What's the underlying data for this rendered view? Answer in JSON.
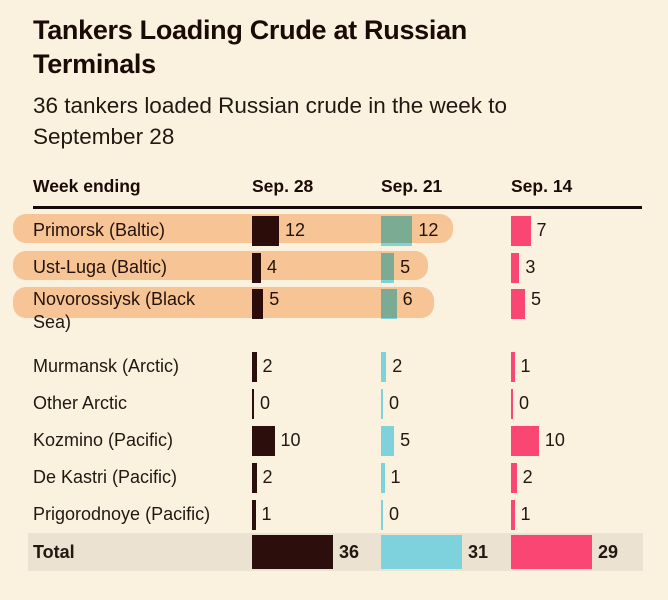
{
  "header": {
    "title": "Tankers Loading Crude at Russian Terminals",
    "subtitle": "36 tankers loaded Russian crude in the week to September 28"
  },
  "table": {
    "label_header": "Week ending",
    "columns": [
      "Sep. 28",
      "Sep. 21",
      "Sep. 14"
    ],
    "rows": [
      {
        "label": "Primorsk (Baltic)",
        "values": [
          12,
          12,
          7
        ],
        "highlighted": true
      },
      {
        "label": "Ust-Luga (Baltic)",
        "values": [
          4,
          5,
          3
        ],
        "highlighted": true
      },
      {
        "label": "Novorossiysk (Black Sea)",
        "values": [
          5,
          6,
          5
        ],
        "highlighted": true
      },
      {
        "label": "Murmansk (Arctic)",
        "values": [
          2,
          2,
          1
        ],
        "highlighted": false
      },
      {
        "label": "Other Arctic",
        "values": [
          0,
          0,
          0
        ],
        "highlighted": false
      },
      {
        "label": "Kozmino (Pacific)",
        "values": [
          10,
          5,
          10
        ],
        "highlighted": false
      },
      {
        "label": "De Kastri (Pacific)",
        "values": [
          2,
          1,
          2
        ],
        "highlighted": false
      },
      {
        "label": "Prigorodnoye (Pacific)",
        "values": [
          1,
          0,
          1
        ],
        "highlighted": false
      }
    ],
    "total": {
      "label": "Total",
      "values": [
        36,
        31,
        29
      ]
    }
  },
  "colors": {
    "background": "#fbf1df",
    "ink": "#1a0b06",
    "series": [
      "#2c0e0d",
      "#7ed2dc",
      "#f94672"
    ],
    "highlight_marker": "#fbd0ab",
    "total_row_background": "#ebe2d2"
  },
  "chart_data": {
    "type": "bar",
    "orientation": "horizontal",
    "title": "Tankers Loading Crude at Russian Terminals",
    "subtitle": "36 tankers loaded Russian crude in the week to September 28",
    "categories": [
      "Primorsk (Baltic)",
      "Ust-Luga (Baltic)",
      "Novorossiysk (Black Sea)",
      "Murmansk (Arctic)",
      "Other Arctic",
      "Kozmino (Pacific)",
      "De Kastri (Pacific)",
      "Prigorodnoye (Pacific)",
      "Total"
    ],
    "series": [
      {
        "name": "Sep. 28",
        "color": "#2c0e0d",
        "values": [
          12,
          4,
          5,
          2,
          0,
          10,
          2,
          1,
          36
        ]
      },
      {
        "name": "Sep. 21",
        "color": "#7ed2dc",
        "values": [
          12,
          5,
          6,
          2,
          0,
          5,
          1,
          0,
          31
        ]
      },
      {
        "name": "Sep. 14",
        "color": "#f94672",
        "values": [
          7,
          3,
          5,
          1,
          0,
          10,
          2,
          1,
          29
        ]
      }
    ],
    "highlighted_categories": [
      "Primorsk (Baltic)",
      "Ust-Luga (Baltic)",
      "Novorossiysk (Black Sea)"
    ],
    "legend": "none",
    "grid": false,
    "bar_scale_note": "bars normalized per column so each column total spans equal width"
  }
}
